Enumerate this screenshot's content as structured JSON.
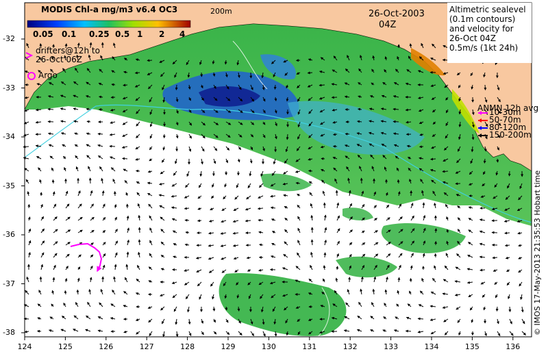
{
  "legend": {
    "title": "MODIS Chl-a mg/m3 v6.4 OC3",
    "ticks": [
      "0.05",
      "0.1",
      "0.25",
      "0.5",
      "1",
      "2",
      "4"
    ]
  },
  "date": {
    "day": "26-Oct-2003",
    "hour": "04Z"
  },
  "isobath_label": "200m",
  "altimetry": {
    "line1": "Altimetric sealevel",
    "line2": "(0.1m contours)",
    "line3": "and velocity for",
    "line4": "26-Oct 04Z",
    "scale_label": "0.5m/s (1kt 24h)"
  },
  "drifters": {
    "line1": "drifters@12h to",
    "line2": "26-Oct 06Z"
  },
  "argo_label": "Argo",
  "anmn": {
    "title": "ANMN 12h avg",
    "items": [
      {
        "label": "10-30m",
        "color": "#ff00ff"
      },
      {
        "label": "50-70m",
        "color": "#ff0000"
      },
      {
        "label": "80-120m",
        "color": "#0000ff"
      },
      {
        "label": "150-200m",
        "color": "#000000"
      }
    ]
  },
  "axis": {
    "x_ticks": [
      "124",
      "125",
      "126",
      "127",
      "128",
      "129",
      "130",
      "131",
      "132",
      "133",
      "134",
      "135",
      "136"
    ],
    "y_ticks": [
      "-32",
      "-33",
      "-34",
      "-35",
      "-36",
      "-37",
      "-38"
    ]
  },
  "credit": "© IMOS 17-May-2013 21:35:53 Hobart time",
  "colors": {
    "land": "#f8c8a0",
    "coast": "#000000",
    "isobath": "#40d0e0",
    "drifter": "#ff00ff"
  }
}
